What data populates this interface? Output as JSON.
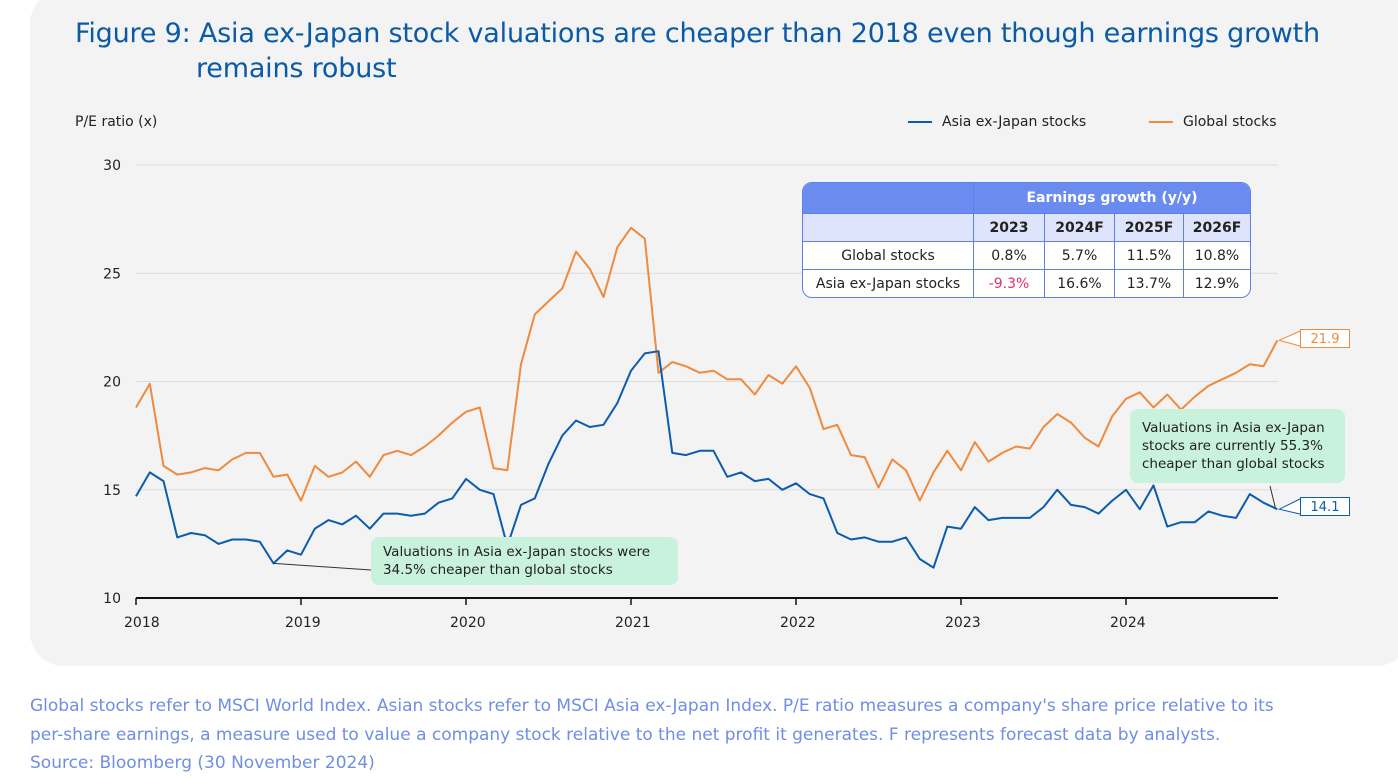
{
  "title": {
    "line1": "Figure 9: Asia ex-Japan stock valuations are cheaper than 2018 even though earnings growth",
    "line2": "remains robust"
  },
  "legend": {
    "asia": "Asia ex-Japan stocks",
    "global": "Global stocks"
  },
  "colors": {
    "asia": "#0b5cab",
    "global": "#f08a3c",
    "title": "#0a5aa6",
    "note": "#6f8ee4",
    "annotation_bg": "#c8f2dc",
    "table_header": "#6a8cf0"
  },
  "chart_data": {
    "type": "line",
    "ylabel": "P/E ratio (x)",
    "ylim": [
      10,
      30
    ],
    "yticks": [
      10,
      15,
      20,
      25,
      30
    ],
    "xticks": [
      "2018",
      "2019",
      "2020",
      "2021",
      "2022",
      "2023",
      "2024"
    ],
    "x_start": "2018-01",
    "x_end": "2024-11",
    "frequency": "monthly",
    "grid": true,
    "legend_position": "top-right",
    "series": [
      {
        "name": "Asia ex-Japan stocks",
        "color": "#0b5cab",
        "values": [
          14.7,
          15.8,
          15.4,
          12.8,
          13.0,
          12.9,
          12.5,
          12.7,
          12.7,
          12.6,
          11.6,
          12.2,
          12.0,
          13.2,
          13.6,
          13.4,
          13.8,
          13.2,
          13.9,
          13.9,
          13.8,
          13.9,
          14.4,
          14.6,
          15.5,
          15.0,
          14.8,
          12.4,
          14.3,
          14.6,
          16.2,
          17.5,
          18.2,
          17.9,
          18.0,
          19.0,
          20.5,
          21.3,
          21.4,
          16.7,
          16.6,
          16.8,
          16.8,
          15.6,
          15.8,
          15.4,
          15.5,
          15.0,
          15.3,
          14.8,
          14.6,
          13.0,
          12.7,
          12.8,
          12.6,
          12.6,
          12.8,
          11.8,
          11.4,
          13.3,
          13.2,
          14.2,
          13.6,
          13.7,
          13.7,
          13.7,
          14.2,
          15.0,
          14.3,
          14.2,
          13.9,
          14.5,
          15.0,
          14.1,
          15.2,
          13.3,
          13.5,
          13.5,
          14.0,
          13.8,
          13.7,
          14.8,
          14.4,
          14.1
        ]
      },
      {
        "name": "Global stocks",
        "color": "#f08a3c",
        "values": [
          18.8,
          19.9,
          16.1,
          15.7,
          15.8,
          16.0,
          15.9,
          16.4,
          16.7,
          16.7,
          15.6,
          15.7,
          14.5,
          16.1,
          15.6,
          15.8,
          16.3,
          15.6,
          16.6,
          16.8,
          16.6,
          17.0,
          17.5,
          18.1,
          18.6,
          18.8,
          16.0,
          15.9,
          20.8,
          23.1,
          23.7,
          24.3,
          26.0,
          25.2,
          23.9,
          26.2,
          27.1,
          26.6,
          20.4,
          20.9,
          20.7,
          20.4,
          20.5,
          20.1,
          20.1,
          19.4,
          20.3,
          19.9,
          20.7,
          19.7,
          17.8,
          18.0,
          16.6,
          16.5,
          15.1,
          16.4,
          15.9,
          14.5,
          15.8,
          16.8,
          15.9,
          17.2,
          16.3,
          16.7,
          17.0,
          16.9,
          17.9,
          18.5,
          18.1,
          17.4,
          17.0,
          18.4,
          19.2,
          19.5,
          18.8,
          19.4,
          18.7,
          19.3,
          19.8,
          20.1,
          20.4,
          20.8,
          20.7,
          21.9
        ]
      }
    ],
    "end_labels": {
      "global": "21.9",
      "asia": "14.1"
    },
    "annotations": [
      "Valuations in Asia ex-Japan stocks were 34.5% cheaper than global stocks",
      "Valuations in Asia ex-Japan stocks are currently 55.3% cheaper than global stocks"
    ]
  },
  "annotations": {
    "left_line1": "Valuations in Asia ex-Japan stocks were",
    "left_line2": "34.5% cheaper than global stocks",
    "right_line1": "Valuations in Asia ex-Japan",
    "right_line2": "stocks are currently 55.3%",
    "right_line3": "cheaper than global stocks"
  },
  "end_labels": {
    "global": "21.9",
    "asia": "14.1"
  },
  "table": {
    "header": "Earnings growth (y/y)",
    "years": [
      "2023",
      "2024F",
      "2025F",
      "2026F"
    ],
    "rows": [
      {
        "label": "Global stocks",
        "values": [
          "0.8%",
          "5.7%",
          "11.5%",
          "10.8%"
        ]
      },
      {
        "label": "Asia ex-Japan stocks",
        "values": [
          "-9.3%",
          "16.6%",
          "13.7%",
          "12.9%"
        ]
      }
    ]
  },
  "footnote": {
    "line1": "Global stocks refer to MSCI World Index. Asian stocks refer to MSCI Asia ex-Japan Index. P/E ratio measures a company's share price relative to its",
    "line2": "per-share earnings, a measure used to value a company stock relative to the net profit it generates. F represents forecast data by analysts.",
    "line3": "Source: Bloomberg (30 November 2024)"
  }
}
